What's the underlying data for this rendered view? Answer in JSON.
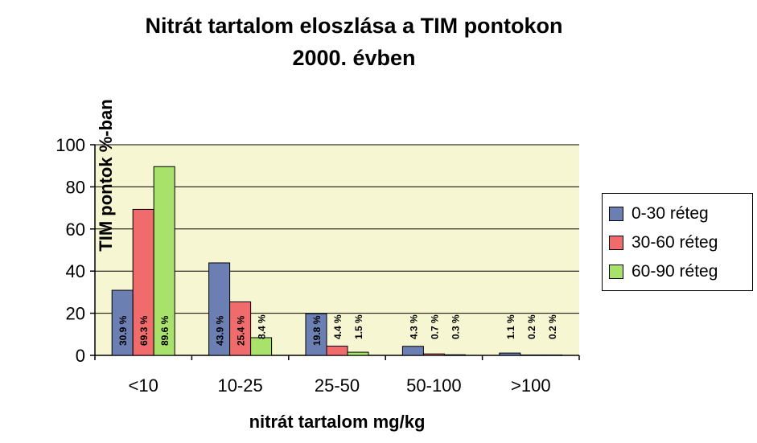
{
  "chart_data": {
    "type": "bar",
    "title": "Nitrát tartalom eloszlása a TIM pontokon",
    "subtitle": "2000. évben",
    "xlabel": "nitrát tartalom mg/kg",
    "ylabel": "TIM pontok %-ban",
    "ylim": [
      0,
      100
    ],
    "yticks": [
      "0",
      "20",
      "40",
      "60",
      "80",
      "100"
    ],
    "categories": [
      "<10",
      "10-25",
      "25-50",
      "50-100",
      ">100"
    ],
    "series": [
      {
        "name": "0-30 réteg",
        "color": "#6b7fb3",
        "values": [
          30.9,
          43.9,
          19.8,
          4.3,
          1.1
        ],
        "labels": [
          "30.9 %",
          "43.9 %",
          "19.8 %",
          "4.3 %",
          "1.1 %"
        ]
      },
      {
        "name": "30-60 réteg",
        "color": "#f06b6b",
        "values": [
          69.3,
          25.4,
          4.4,
          0.7,
          0.2
        ],
        "labels": [
          "69.3 %",
          "25.4 %",
          "4.4 %",
          "0.7 %",
          "0.2 %"
        ]
      },
      {
        "name": "60-90 réteg",
        "color": "#a9e26b",
        "values": [
          89.6,
          8.4,
          1.5,
          0.3,
          0.2
        ],
        "labels": [
          "89.6 %",
          "8.4 %",
          "1.5 %",
          "0.3 %",
          "0.2 %"
        ]
      }
    ],
    "grid": true,
    "legend_position": "right",
    "plot_background": "#f6f6d2"
  }
}
